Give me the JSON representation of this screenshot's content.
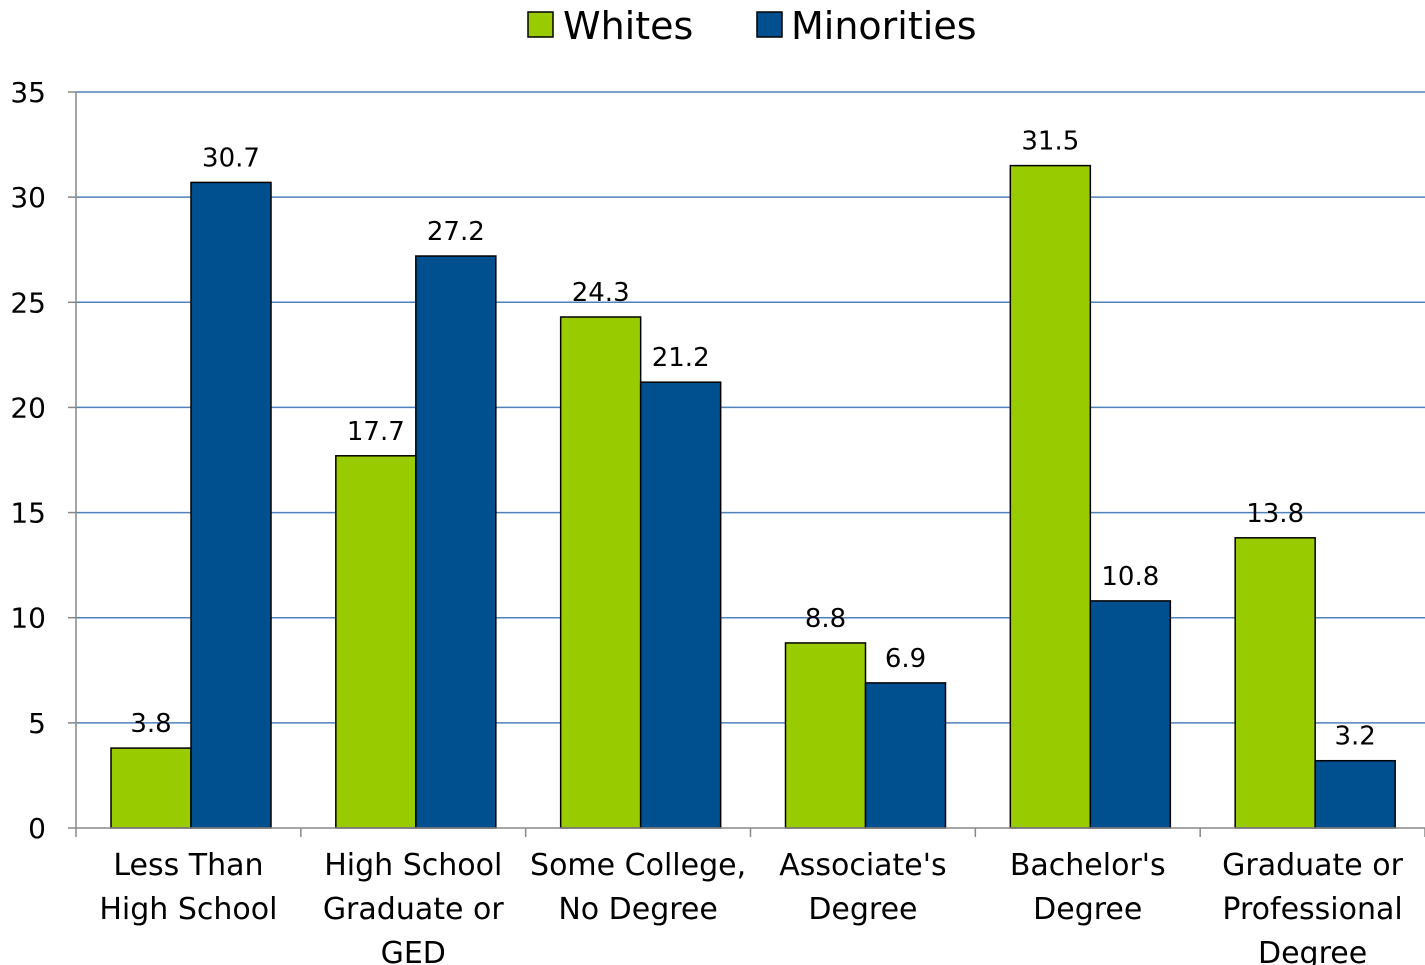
{
  "chart_data": {
    "type": "bar",
    "title": "",
    "xlabel": "",
    "ylabel": "",
    "ylim": [
      0,
      35
    ],
    "yticks": [
      0,
      5,
      10,
      15,
      20,
      25,
      30,
      35
    ],
    "grid": true,
    "legend_position": "top-center",
    "categories": [
      [
        "Less Than",
        "High School"
      ],
      [
        "High School",
        "Graduate or",
        "GED"
      ],
      [
        "Some College,",
        "No Degree"
      ],
      [
        "Associate's",
        "Degree"
      ],
      [
        "Bachelor's",
        "Degree"
      ],
      [
        "Graduate or",
        "Professional",
        "Degree"
      ]
    ],
    "series": [
      {
        "name": "Whites",
        "color": "#99cc00",
        "values": [
          3.8,
          17.7,
          24.3,
          8.8,
          31.5,
          13.8
        ]
      },
      {
        "name": "Minorities",
        "color": "#004f8f",
        "values": [
          30.7,
          27.2,
          21.2,
          6.9,
          10.8,
          3.2
        ]
      }
    ],
    "gridline_color": "#4f81bd"
  }
}
